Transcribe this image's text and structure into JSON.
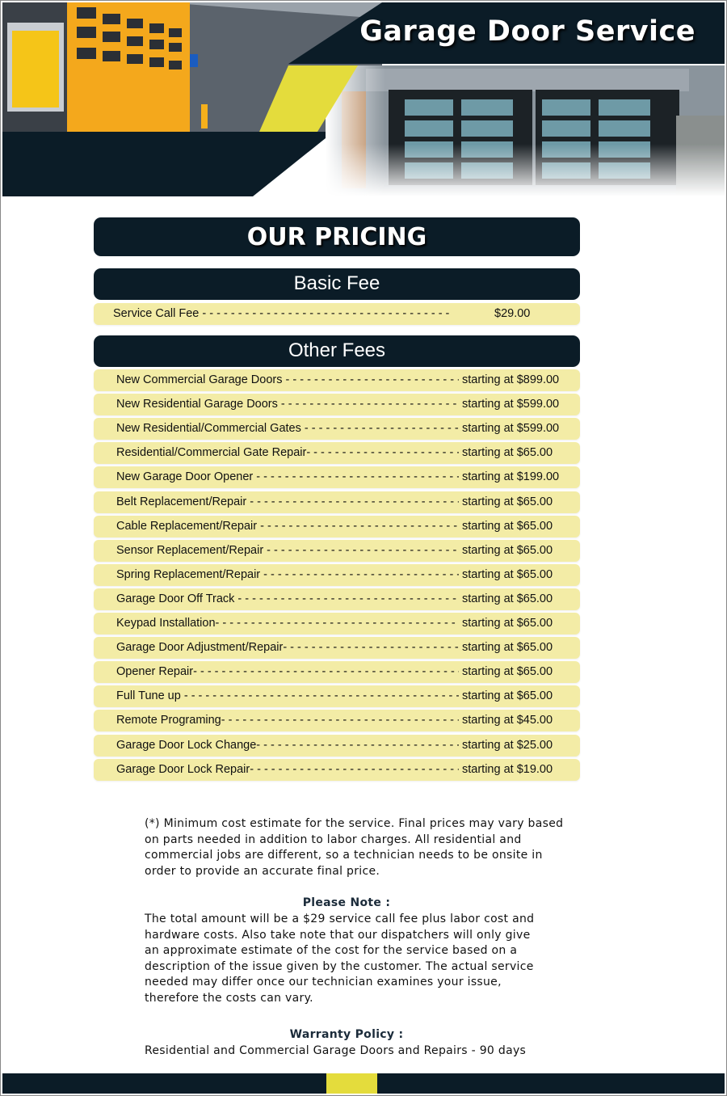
{
  "header": {
    "title": "Garage Door Service"
  },
  "pricing": {
    "title": "OUR PRICING",
    "basic_fee": {
      "heading": "Basic Fee",
      "items": [
        {
          "name": "Service Call Fee",
          "price": "$29.00"
        }
      ]
    },
    "other_fees": {
      "heading": "Other Fees",
      "items": [
        {
          "name": "New Commercial Garage Doors",
          "price": "starting at $899.00"
        },
        {
          "name": "New Residential Garage Doors",
          "price": "starting at $599.00"
        },
        {
          "name": "New Residential/Commercial Gates",
          "price": "starting at $599.00"
        },
        {
          "name": "Residential/Commercial Gate Repair-",
          "price": "starting at $65.00"
        },
        {
          "name": "New Garage Door Opener",
          "price": "starting at $199.00"
        },
        {
          "name": "Belt Replacement/Repair",
          "price": "starting at $65.00"
        },
        {
          "name": "Cable Replacement/Repair",
          "price": "starting at $65.00"
        },
        {
          "name": "Sensor Replacement/Repair",
          "price": "starting at $65.00"
        },
        {
          "name": "Spring Replacement/Repair",
          "price": "starting at $65.00"
        },
        {
          "name": "Garage Door Off Track",
          "price": "starting at $65.00"
        },
        {
          "name": "Keypad Installation-",
          "price": "starting at $65.00"
        },
        {
          "name": "Garage Door Adjustment/Repair-",
          "price": "starting at $65.00"
        },
        {
          "name": "Opener Repair-",
          "price": "starting at $65.00"
        },
        {
          "name": "Full Tune up",
          "price": "starting at $65.00"
        },
        {
          "name": "Remote Programing-",
          "price": "starting at $45.00"
        },
        {
          "name": "Garage Door Lock Change-",
          "price": "starting at $25.00"
        },
        {
          "name": "Garage Door Lock Repair-",
          "price": "starting at $19.00"
        }
      ]
    }
  },
  "notes": {
    "disclaimer": "(*) Minimum cost estimate for the service. Final prices may vary based on parts needed in addition to labor charges. All residential and commercial jobs are different, so a technician needs to be onsite in order to provide an accurate final price.",
    "please_note_heading": "Please Note :",
    "please_note_text": "The total amount will be a $29 service call fee plus labor cost and hardware costs. Also take note that our dispatchers will only give an approximate estimate of the cost for the service based on a description of the issue given by the customer. The actual service needed may differ once our technician examines your issue, therefore the costs can vary.",
    "warranty_heading": "Warranty Policy :",
    "warranty_text": "Residential and Commercial Garage Doors and Repairs - 90 days"
  },
  "colors": {
    "navy": "#0b1c27",
    "row_yellow": "#f3eca6",
    "accent_yellow": "#e4dc3c"
  }
}
